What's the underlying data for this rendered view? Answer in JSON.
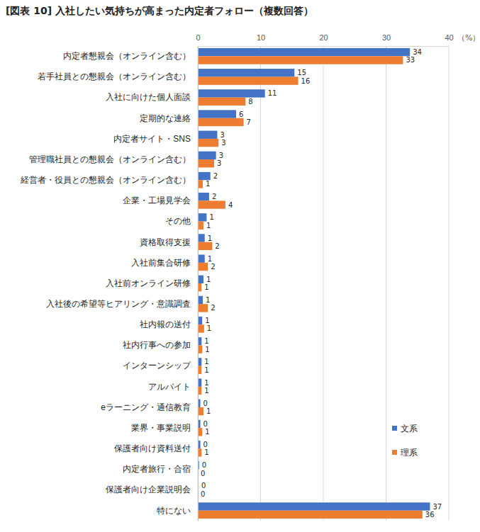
{
  "chart_data": {
    "type": "bar",
    "orientation": "horizontal",
    "title": "[図表 10] 入社したい気持ちが高まった内定者フォロー（複数回答）",
    "x_label": "（%）",
    "categories": [
      "内定者懇親会（オンライン含む）",
      "若手社員との懇親会（オンライン含む）",
      "入社に向けた個人面談",
      "定期的な連絡",
      "内定者サイト・SNS",
      "管理職社員との懇親会（オンライン含む）",
      "経営者・役員との懇親会（オンライン含む）",
      "企業・工場見学会",
      "その他",
      "資格取得支援",
      "入社前集合研修",
      "入社前オンライン研修",
      "入社後の希望等ヒアリング・意識調査",
      "社内報の送付",
      "社内行事への参加",
      "インターンシップ",
      "アルバイト",
      "eラーニング・通信教育",
      "業界・事業説明",
      "保護者向け資料送付",
      "内定者旅行・合宿",
      "保護者向け企業説明会",
      "特にない"
    ],
    "series": [
      {
        "name": "文系",
        "color": "#4472c4",
        "values": [
          33.8,
          15.4,
          10.7,
          6.1,
          3.1,
          2.9,
          2.0,
          1.8,
          1.4,
          1.1,
          1.1,
          0.9,
          0.8,
          0.7,
          0.6,
          0.6,
          0.6,
          0.4,
          0.4,
          0.4,
          0.2,
          0.1,
          37.0
        ],
        "value_labels": [
          "34",
          "15",
          "11",
          "6",
          "3",
          "3",
          "2",
          "2",
          "1",
          "1",
          "1",
          "1",
          "1",
          "1",
          "1",
          "1",
          "1",
          "0",
          "0",
          "0",
          "0",
          "0",
          "37"
        ]
      },
      {
        "name": "理系",
        "color": "#ed7d31",
        "values": [
          32.7,
          16.0,
          7.6,
          7.3,
          3.3,
          2.6,
          0.8,
          4.4,
          0.9,
          2.3,
          1.6,
          0.6,
          1.6,
          1.0,
          0.7,
          0.6,
          0.6,
          0.9,
          0.7,
          0.6,
          0.0,
          0.0,
          35.8
        ],
        "value_labels": [
          "33",
          "16",
          "8",
          "7",
          "3",
          "3",
          "1",
          "4",
          "1",
          "2",
          "2",
          "1",
          "2",
          "1",
          "1",
          "1",
          "1",
          "1",
          "1",
          "1",
          "0",
          "0",
          "36"
        ]
      }
    ],
    "xlim": [
      0,
      40
    ],
    "xticks": [
      0,
      10,
      20,
      30,
      40
    ],
    "grid": true,
    "legend": "lower right",
    "data_labels": true
  }
}
